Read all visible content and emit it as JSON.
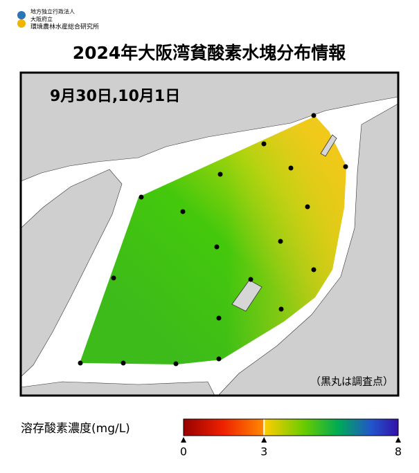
{
  "header": {
    "org_lines": [
      "地方独立行政法人",
      "大阪府立",
      "環境農林水産総合研究所"
    ],
    "title": "2024年大阪湾貧酸素水塊分布情報"
  },
  "map": {
    "date": "9月30日,10月1日",
    "note": "（黒丸は調査点）"
  },
  "legend": {
    "label": "溶存酸素濃度(mg/L)",
    "range": [
      0,
      8
    ],
    "ticks": [
      0,
      3,
      8
    ]
  }
}
